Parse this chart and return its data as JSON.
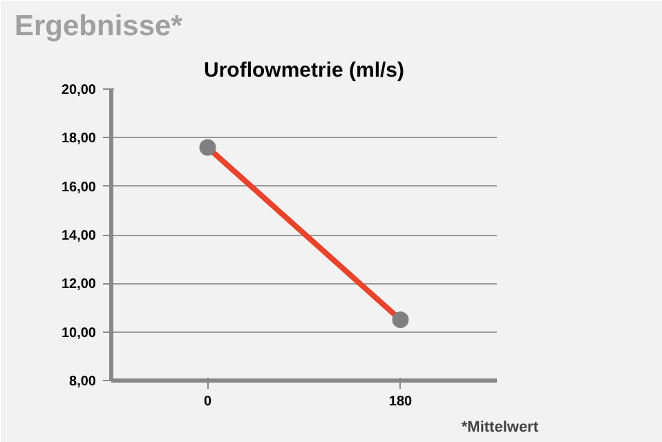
{
  "chart_data": {
    "type": "line",
    "title": "Uroflowmetrie (ml/s)",
    "subtitle": "Ergebnisse*",
    "annotations": [
      "*Mittelwert"
    ],
    "categories": [
      "0",
      "180"
    ],
    "series": [
      {
        "color": "#e8432b",
        "values": [
          17.6,
          10.5
        ]
      }
    ],
    "ylim": [
      8,
      20
    ],
    "yticks": [
      {
        "value": 8,
        "label": "8,00"
      },
      {
        "value": 10,
        "label": "10,00"
      },
      {
        "value": 12,
        "label": "12,00"
      },
      {
        "value": 14,
        "label": "14,00"
      },
      {
        "value": 16,
        "label": "16,00"
      },
      {
        "value": 18,
        "label": "18,00"
      },
      {
        "value": 20,
        "label": "20,00"
      }
    ],
    "grid": "y",
    "marker": "circle"
  }
}
